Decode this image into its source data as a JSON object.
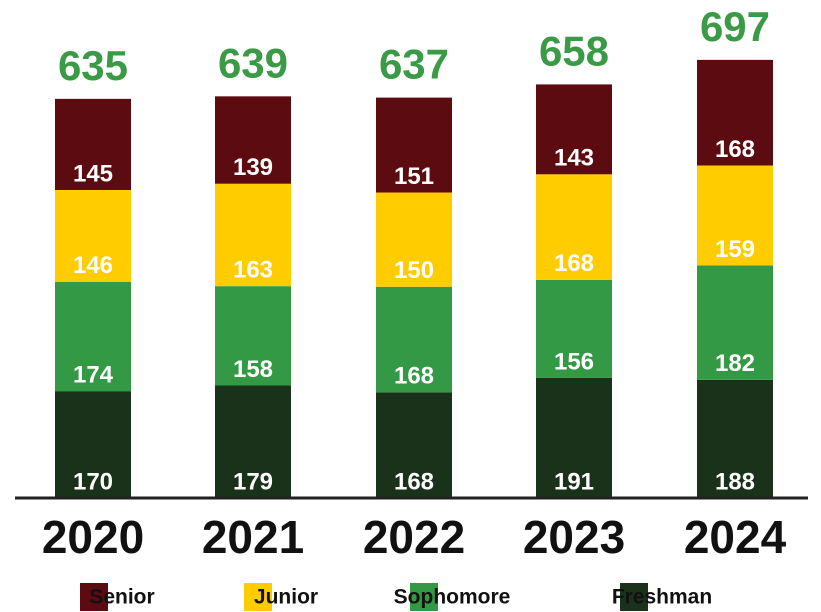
{
  "chart_data": {
    "type": "stacked_bar",
    "categories": [
      "2020",
      "2021",
      "2022",
      "2023",
      "2024"
    ],
    "totals": [
      635,
      639,
      637,
      658,
      697
    ],
    "series": [
      {
        "name": "Senior",
        "color": "#5c0c10",
        "values": [
          145,
          139,
          151,
          143,
          168
        ]
      },
      {
        "name": "Junior",
        "color": "#ffcc00",
        "values": [
          146,
          163,
          150,
          168,
          159
        ]
      },
      {
        "name": "Sophomore",
        "color": "#339944",
        "values": [
          174,
          158,
          168,
          156,
          182
        ]
      },
      {
        "name": "Freshman",
        "color": "#1a311a",
        "values": [
          170,
          179,
          168,
          191,
          188
        ]
      }
    ],
    "ylim": [
      0,
      700
    ]
  }
}
